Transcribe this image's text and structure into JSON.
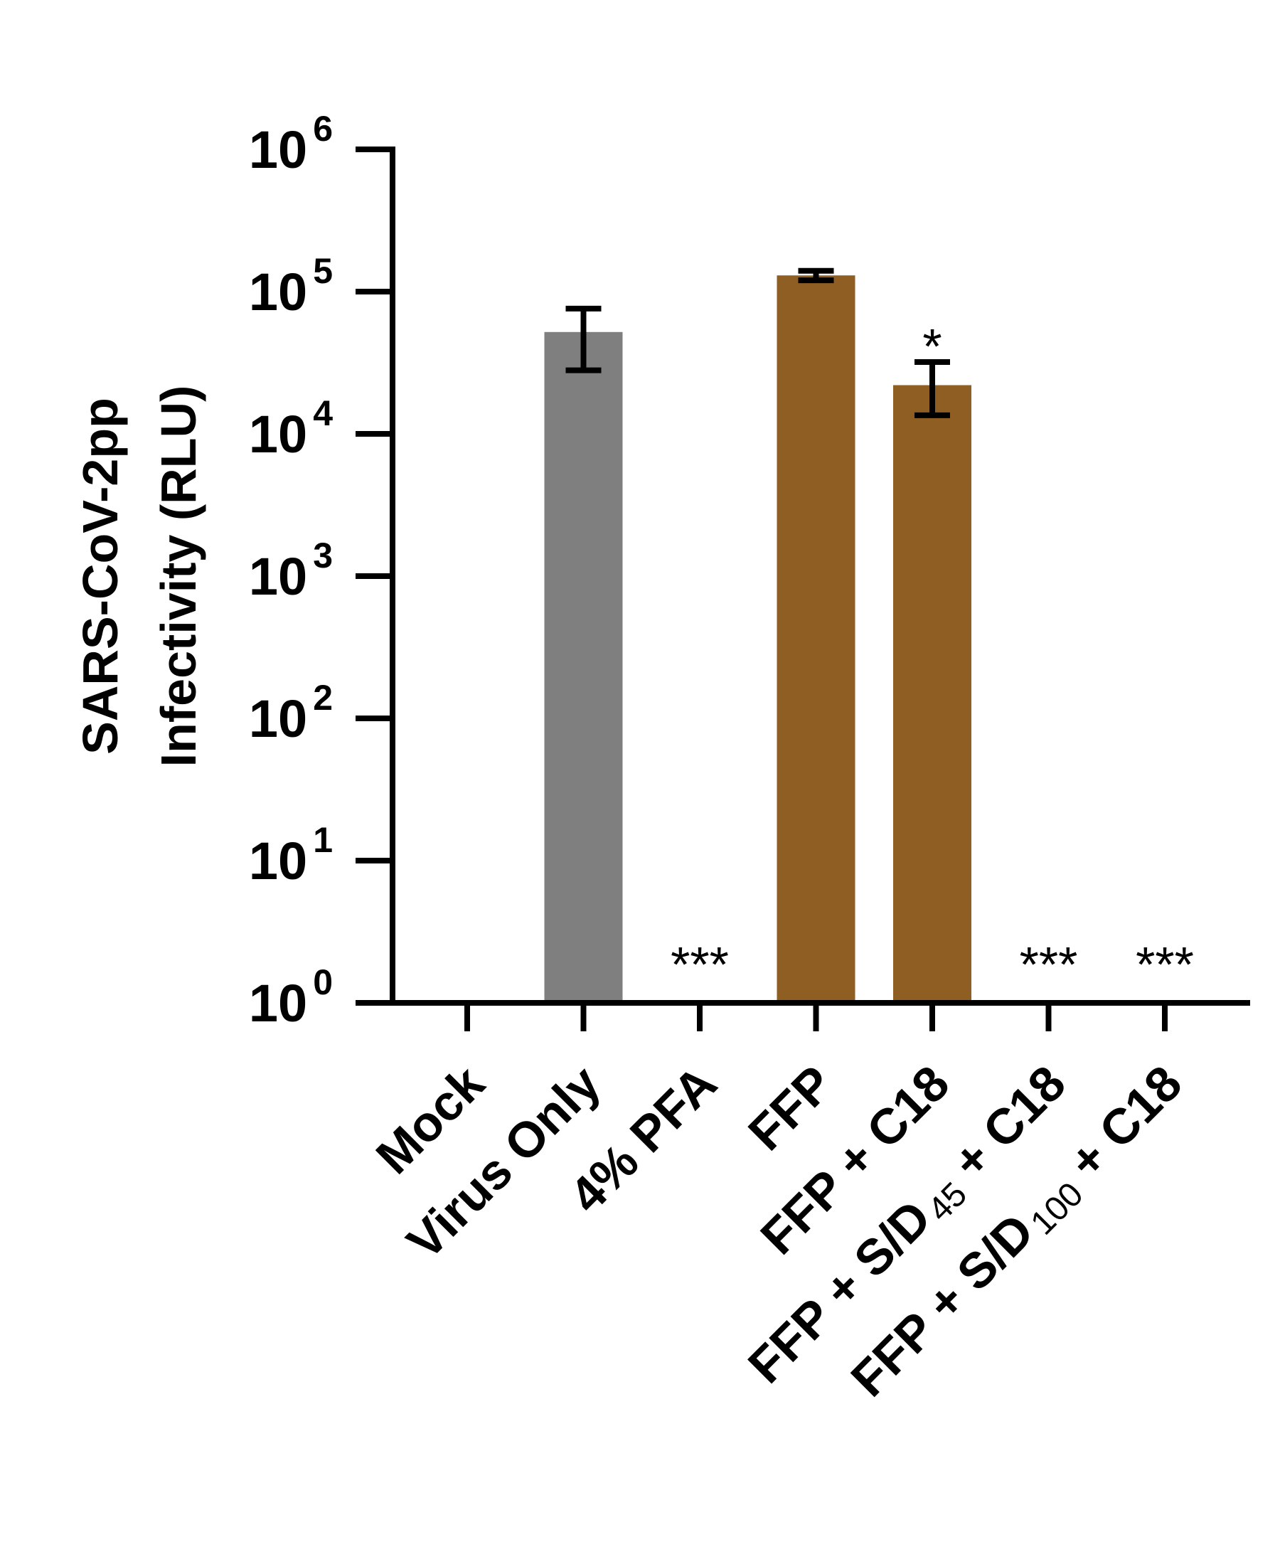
{
  "chart_data": {
    "type": "bar",
    "yscale": "log",
    "ylim": [
      1,
      1000000
    ],
    "ylabel_lines": [
      "SARS-CoV-2pp",
      "Infectivity (RLU)"
    ],
    "yticks": [
      {
        "base": "10",
        "exp": "6"
      },
      {
        "base": "10",
        "exp": "5"
      },
      {
        "base": "10",
        "exp": "4"
      },
      {
        "base": "10",
        "exp": "3"
      },
      {
        "base": "10",
        "exp": "2"
      },
      {
        "base": "10",
        "exp": "1"
      },
      {
        "base": "10",
        "exp": "0"
      }
    ],
    "categories": [
      {
        "label": "Mock",
        "sub": "",
        "suffix": ""
      },
      {
        "label": "Virus Only",
        "sub": "",
        "suffix": ""
      },
      {
        "label": "4% PFA",
        "sub": "",
        "suffix": ""
      },
      {
        "label": "FFP",
        "sub": "",
        "suffix": ""
      },
      {
        "label": "FFP + C18",
        "sub": "",
        "suffix": ""
      },
      {
        "label": "FFP + S/D",
        "sub": "45",
        "suffix": " + C18"
      },
      {
        "label": "FFP + S/D",
        "sub": "100",
        "suffix": " + C18"
      }
    ],
    "values": [
      1,
      52000,
      1,
      130000,
      22000,
      1,
      1
    ],
    "error_low": [
      null,
      28000,
      null,
      120000,
      13500,
      null,
      null
    ],
    "error_high": [
      null,
      76000,
      null,
      140000,
      32000,
      null,
      null
    ],
    "significance": [
      "",
      "",
      "***",
      "",
      "*",
      "***",
      "***"
    ],
    "colors": [
      "#7f7f7f",
      "#7f7f7f",
      "#7f7f7f",
      "#8f5e22",
      "#8f5e22",
      "#8f5e22",
      "#8f5e22"
    ],
    "grid": false,
    "legend": "none"
  }
}
